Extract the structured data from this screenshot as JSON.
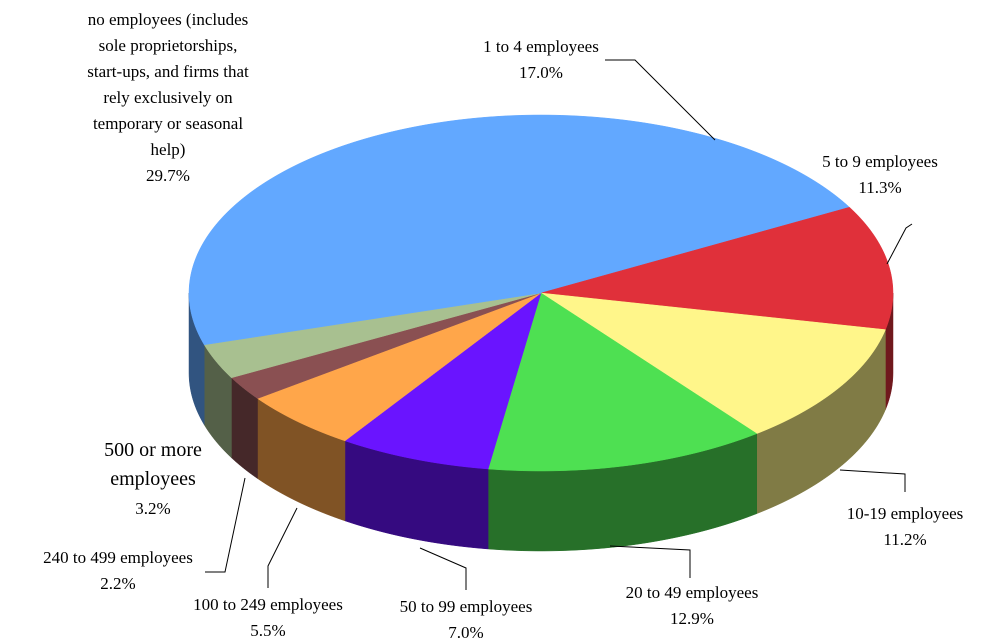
{
  "chart_data": {
    "type": "pie3d",
    "categories": [
      "1 to 4 employees",
      "5 to 9 employees",
      "10-19 employees",
      "20 to 49 employees",
      "50 to 99 employees",
      "100 to 249 employees",
      "240 to 499 employees",
      "500 or more employees",
      "no employees (includes sole proprietorships, start-ups, and firms that rely exclusively on temporary or seasonal help)"
    ],
    "values": [
      17.0,
      11.3,
      11.2,
      12.9,
      7.0,
      5.5,
      2.2,
      3.2,
      29.7
    ],
    "value_labels": [
      "17.0%",
      "11.3%",
      "11.2%",
      "12.9%",
      "7.0%",
      "5.5%",
      "2.2%",
      "3.2%",
      "29.7%"
    ],
    "colors": [
      "#62a8ff",
      "#e0303a",
      "#fff68a",
      "#4ee052",
      "#6a14ff",
      "#ffa64a",
      "#8a5052",
      "#a8c090",
      "#62a8ff"
    ]
  }
}
